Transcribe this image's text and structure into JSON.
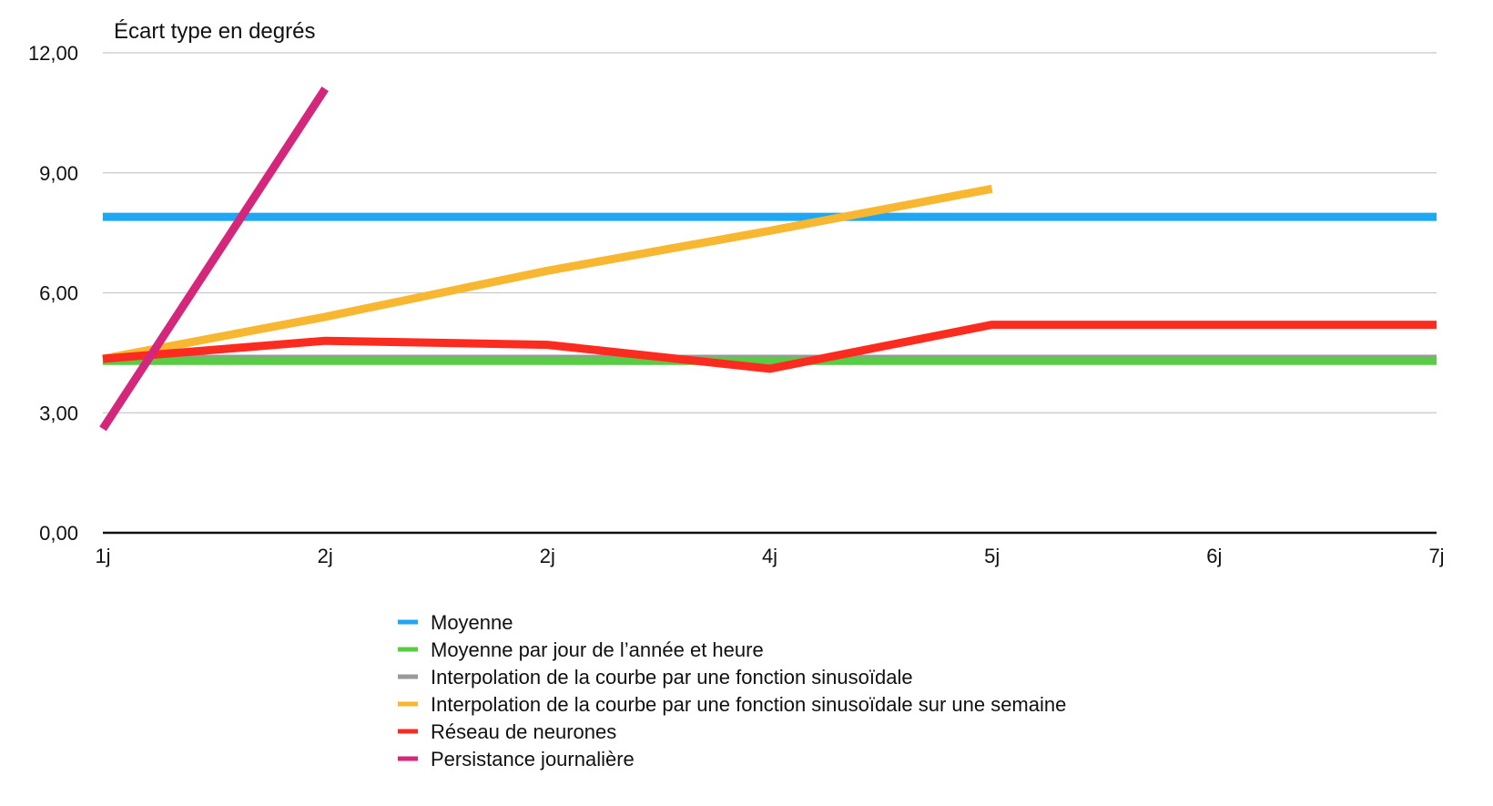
{
  "chart_data": {
    "type": "line",
    "title": "",
    "ylabel": "Écart type en degrés",
    "xlabel": "",
    "categories": [
      "1j",
      "2j",
      "2j",
      "4j",
      "5j",
      "6j",
      "7j"
    ],
    "y_ticks": [
      "0,00",
      "3,00",
      "6,00",
      "9,00",
      "12,00"
    ],
    "ylim": [
      0,
      12
    ],
    "grid": true,
    "legend_position": "bottom",
    "series": [
      {
        "name": "Moyenne",
        "color": "#1ea7f4",
        "values": [
          7.9,
          7.9,
          7.9,
          7.9,
          7.9,
          7.9,
          7.9
        ]
      },
      {
        "name": "Moyenne par jour de l’année et heure",
        "color": "#58cc44",
        "values": [
          4.3,
          4.3,
          4.3,
          4.3,
          4.3,
          4.3,
          4.3
        ]
      },
      {
        "name": "Interpolation de la courbe par une fonction sinusoïdale",
        "color": "#999999",
        "values": [
          4.35,
          4.35,
          4.35,
          4.35,
          4.35,
          4.35,
          4.35
        ]
      },
      {
        "name": "Interpolation de la courbe par une fonction sinusoïdale sur une semaine",
        "color": "#f7b731",
        "values": [
          4.35,
          5.4,
          6.55,
          7.55,
          8.6,
          null,
          null
        ]
      },
      {
        "name": "Réseau de neurones",
        "color": "#fb2c1f",
        "values": [
          4.35,
          4.8,
          4.7,
          4.1,
          5.2,
          5.2,
          5.2
        ]
      },
      {
        "name": "Persistance journalière",
        "color": "#d4267a",
        "values": [
          2.6,
          11.1,
          null,
          null,
          null,
          null,
          null
        ]
      }
    ]
  }
}
